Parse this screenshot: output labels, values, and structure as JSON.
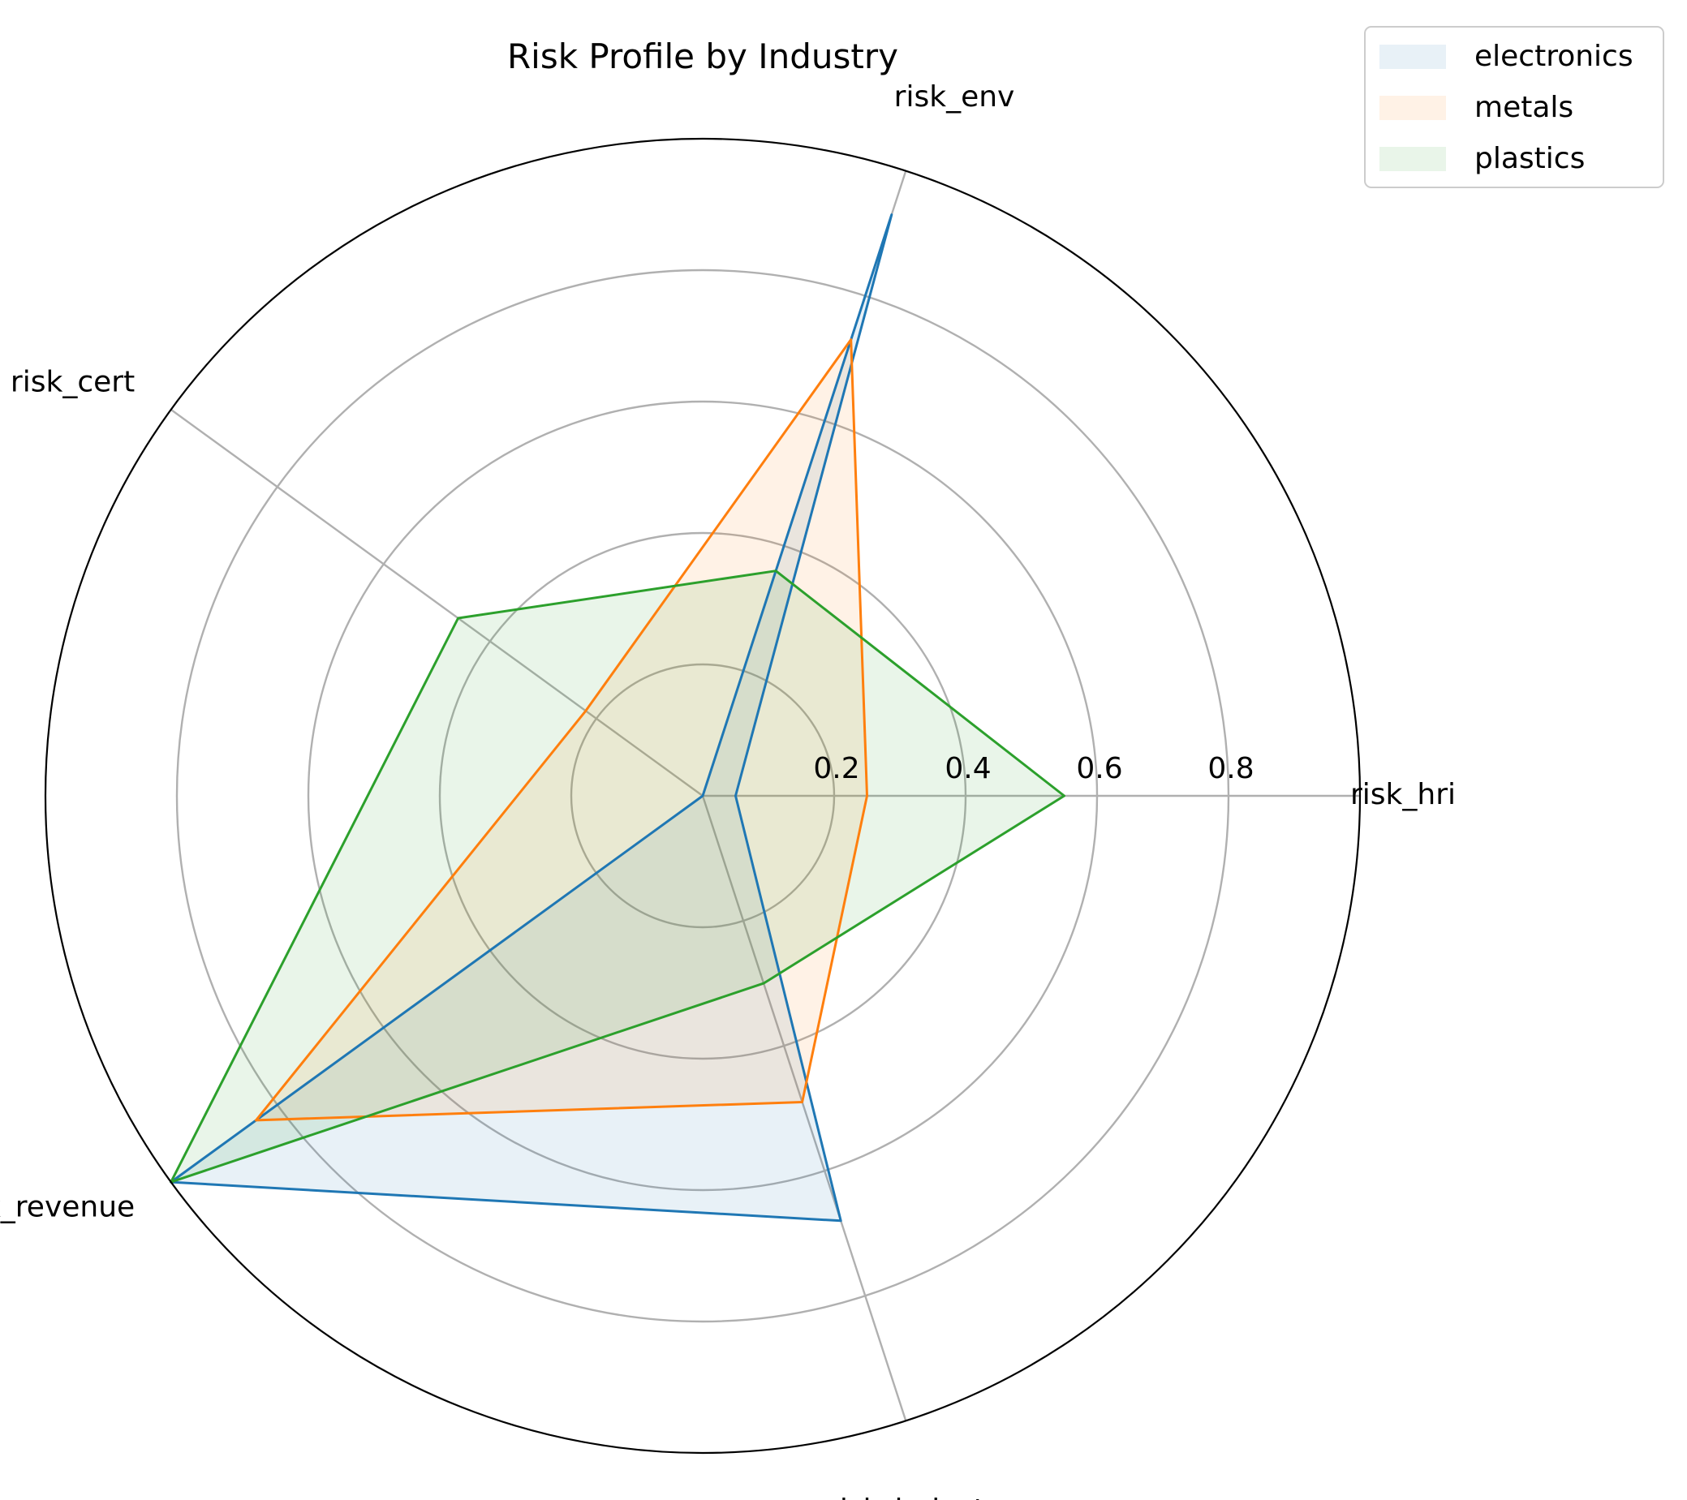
{
  "chart_data": {
    "type": "radar",
    "title": "Risk Profile by Industry",
    "axes": [
      "risk_hri",
      "risk_env",
      "risk_cert",
      "risk_revenue",
      "risk_industry"
    ],
    "rlim": [
      0,
      1.0
    ],
    "r_ticks": [
      0.2,
      0.4,
      0.6,
      0.8
    ],
    "r_tick_labels": [
      "0.2",
      "0.4",
      "0.6",
      "0.8"
    ],
    "grid": true,
    "legend_position": "top-right",
    "series": [
      {
        "name": "electronics",
        "color": "#1f77b4",
        "values": [
          0.05,
          0.93,
          0.0,
          1.0,
          0.68
        ]
      },
      {
        "name": "metals",
        "color": "#ff7f0e",
        "values": [
          0.25,
          0.73,
          0.22,
          0.84,
          0.49
        ]
      },
      {
        "name": "plastics",
        "color": "#2ca02c",
        "values": [
          0.55,
          0.36,
          0.46,
          1.0,
          0.3
        ]
      }
    ]
  }
}
